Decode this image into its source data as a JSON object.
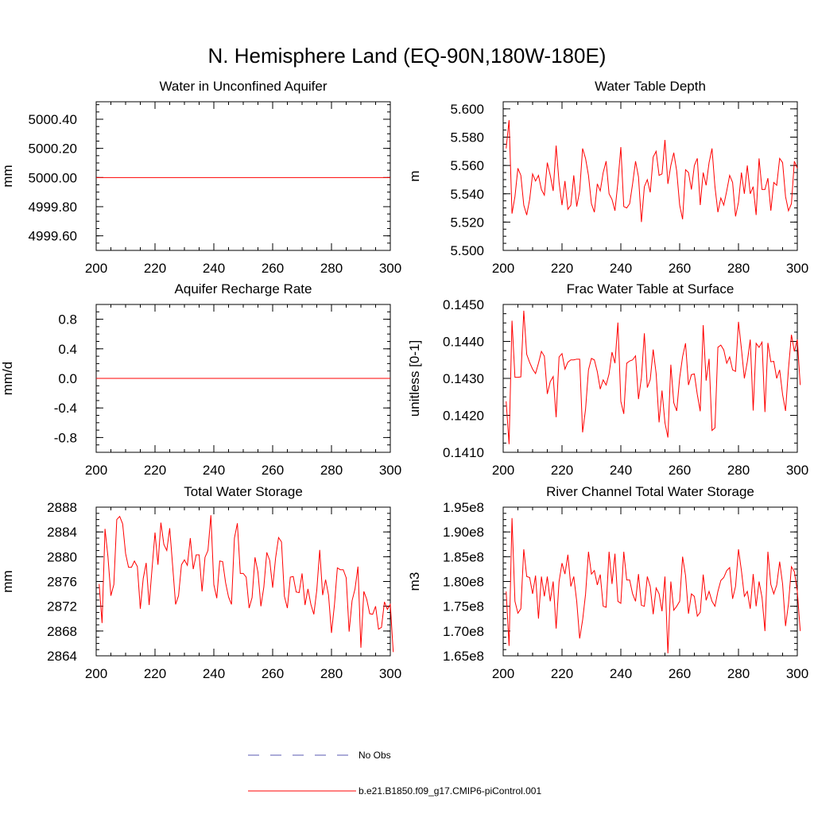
{
  "title": "N. Hemisphere Land (EQ-90N,180W-180E)",
  "colors": {
    "model": "#ff0000",
    "obs": "#5a5ab0",
    "axis": "#000000"
  },
  "legend": {
    "obs_label": "No Obs",
    "model_label": "b.e21.B1850.f09_g17.CMIP6-piControl.001"
  },
  "chart_data": [
    {
      "id": "aquifer-water",
      "type": "line",
      "title": "Water in Unconfined Aquifer",
      "xlabel": "",
      "ylabel": "mm",
      "xlim": [
        200,
        300
      ],
      "ylim": [
        4999.5,
        5000.52
      ],
      "xticks": [
        200,
        220,
        240,
        260,
        280,
        300
      ],
      "xtick_labels": [
        "200",
        "220",
        "240",
        "260",
        "280",
        "300"
      ],
      "yticks": [
        4999.6,
        4999.8,
        5000.0,
        5000.2,
        5000.4
      ],
      "ytick_labels": [
        "4999.60",
        "4999.80",
        "5000.00",
        "5000.20",
        "5000.40"
      ],
      "x_start": 201,
      "series": [
        {
          "name": "b.e21.B1850.f09_g17.CMIP6-piControl.001",
          "constant": 5000.0,
          "values": []
        }
      ]
    },
    {
      "id": "water-table-depth",
      "type": "line",
      "title": "Water Table Depth",
      "xlabel": "",
      "ylabel": "m",
      "xlim": [
        200,
        300
      ],
      "ylim": [
        5.5,
        5.605
      ],
      "xticks": [
        200,
        220,
        240,
        260,
        280,
        300
      ],
      "xtick_labels": [
        "200",
        "220",
        "240",
        "260",
        "280",
        "300"
      ],
      "yticks": [
        5.5,
        5.52,
        5.54,
        5.56,
        5.58,
        5.6
      ],
      "ytick_labels": [
        "5.500",
        "5.520",
        "5.540",
        "5.560",
        "5.580",
        "5.600"
      ],
      "x_start": 201,
      "series": [
        {
          "name": "b.e21.B1850.f09_g17.CMIP6-piControl.001",
          "values": [
            5.572,
            5.592,
            5.526,
            5.538,
            5.558,
            5.553,
            5.532,
            5.525,
            5.536,
            5.554,
            5.549,
            5.553,
            5.543,
            5.539,
            5.562,
            5.553,
            5.542,
            5.574,
            5.548,
            5.532,
            5.549,
            5.529,
            5.532,
            5.553,
            5.531,
            5.542,
            5.572,
            5.565,
            5.553,
            5.533,
            5.527,
            5.547,
            5.542,
            5.555,
            5.563,
            5.54,
            5.536,
            5.528,
            5.548,
            5.573,
            5.531,
            5.53,
            5.533,
            5.547,
            5.563,
            5.552,
            5.52,
            5.545,
            5.55,
            5.541,
            5.566,
            5.57,
            5.553,
            5.554,
            5.578,
            5.547,
            5.56,
            5.569,
            5.556,
            5.532,
            5.522,
            5.557,
            5.555,
            5.543,
            5.56,
            5.565,
            5.532,
            5.555,
            5.546,
            5.562,
            5.572,
            5.545,
            5.527,
            5.537,
            5.532,
            5.542,
            5.553,
            5.548,
            5.524,
            5.534,
            5.555,
            5.54,
            5.56,
            5.54,
            5.545,
            5.525,
            5.565,
            5.543,
            5.543,
            5.551,
            5.528,
            5.548,
            5.546,
            5.565,
            5.562,
            5.538,
            5.528,
            5.533,
            5.563,
            5.558
          ]
        }
      ]
    },
    {
      "id": "recharge-rate",
      "type": "line",
      "title": "Aquifer Recharge Rate",
      "xlabel": "",
      "ylabel": "mm/d",
      "xlim": [
        200,
        300
      ],
      "ylim": [
        -1.0,
        1.0
      ],
      "xticks": [
        200,
        220,
        240,
        260,
        280,
        300
      ],
      "xtick_labels": [
        "200",
        "220",
        "240",
        "260",
        "280",
        "300"
      ],
      "yticks": [
        -0.8,
        -0.4,
        0.0,
        0.4,
        0.8
      ],
      "ytick_labels": [
        "-0.8",
        "-0.4",
        "0.0",
        "0.4",
        "0.8"
      ],
      "x_start": 201,
      "series": [
        {
          "name": "b.e21.B1850.f09_g17.CMIP6-piControl.001",
          "constant": 0.0,
          "values": []
        }
      ]
    },
    {
      "id": "frac-water-table",
      "type": "line",
      "title": "Frac Water Table at Surface",
      "xlabel": "",
      "ylabel": "unitless [0-1]",
      "xlim": [
        200,
        300
      ],
      "ylim": [
        0.141,
        0.145
      ],
      "xticks": [
        200,
        220,
        240,
        260,
        280,
        300
      ],
      "xtick_labels": [
        "200",
        "220",
        "240",
        "260",
        "280",
        "300"
      ],
      "yticks": [
        0.141,
        0.142,
        0.143,
        0.144,
        0.145
      ],
      "ytick_labels": [
        "0.1410",
        "0.1420",
        "0.1430",
        "0.1440",
        "0.1450"
      ],
      "x_start": 201,
      "series": [
        {
          "name": "b.e21.B1850.f09_g17.CMIP6-piControl.001",
          "values": [
            0.14238,
            0.14122,
            0.14456,
            0.14303,
            0.14303,
            0.14304,
            0.14483,
            0.14365,
            0.14343,
            0.14325,
            0.14313,
            0.14341,
            0.14373,
            0.1436,
            0.14258,
            0.14291,
            0.14305,
            0.14195,
            0.14358,
            0.14367,
            0.14325,
            0.14344,
            0.1435,
            0.1435,
            0.14352,
            0.14352,
            0.14154,
            0.14216,
            0.14323,
            0.14354,
            0.1435,
            0.14318,
            0.14271,
            0.14296,
            0.14282,
            0.14312,
            0.14371,
            0.14341,
            0.14451,
            0.14238,
            0.14204,
            0.14341,
            0.14347,
            0.1435,
            0.14361,
            0.14244,
            0.14302,
            0.14422,
            0.14275,
            0.14297,
            0.14378,
            0.14313,
            0.14181,
            0.14267,
            0.1418,
            0.1414,
            0.14337,
            0.14234,
            0.14212,
            0.14301,
            0.14359,
            0.14395,
            0.14282,
            0.1431,
            0.14312,
            0.14256,
            0.14211,
            0.14444,
            0.14294,
            0.14353,
            0.14159,
            0.14166,
            0.14384,
            0.1439,
            0.14377,
            0.14341,
            0.14358,
            0.14323,
            0.14319,
            0.14453,
            0.1438,
            0.143,
            0.14345,
            0.14405,
            0.14213,
            0.14395,
            0.14384,
            0.14398,
            0.14209,
            0.14396,
            0.14345,
            0.14346,
            0.143,
            0.14323,
            0.14256,
            0.14212,
            0.14326,
            0.14418,
            0.14373,
            0.14405,
            0.14282
          ]
        }
      ]
    },
    {
      "id": "total-water-storage",
      "type": "line",
      "title": "Total Water Storage",
      "xlabel": "",
      "ylabel": "mm",
      "xlim": [
        200,
        300
      ],
      "ylim": [
        2864,
        2888
      ],
      "xticks": [
        200,
        220,
        240,
        260,
        280,
        300
      ],
      "xtick_labels": [
        "200",
        "220",
        "240",
        "260",
        "280",
        "300"
      ],
      "yticks": [
        2864,
        2868,
        2872,
        2876,
        2880,
        2884,
        2888
      ],
      "ytick_labels": [
        "2864",
        "2868",
        "2872",
        "2876",
        "2880",
        "2884",
        "2888"
      ],
      "x_start": 201,
      "series": [
        {
          "name": "b.e21.B1850.f09_g17.CMIP6-piControl.001",
          "values": [
            2875.6,
            2869.3,
            2884.5,
            2880.0,
            2873.7,
            2875.5,
            2886.0,
            2886.5,
            2885.3,
            2880.5,
            2878.3,
            2878.3,
            2879.3,
            2878.4,
            2871.6,
            2876.5,
            2879.0,
            2872.2,
            2878.1,
            2883.9,
            2878.7,
            2885.5,
            2882.0,
            2881.0,
            2884.6,
            2878.5,
            2872.3,
            2873.7,
            2878.7,
            2879.5,
            2878.6,
            2883.0,
            2878.0,
            2880.3,
            2880.3,
            2874.4,
            2879.9,
            2881.0,
            2886.7,
            2875.5,
            2873.3,
            2879.3,
            2879.2,
            2875.8,
            2873.5,
            2872.3,
            2883.0,
            2885.4,
            2877.3,
            2877.3,
            2876.7,
            2871.7,
            2873.4,
            2879.9,
            2877.5,
            2872.0,
            2875.1,
            2880.7,
            2879.4,
            2875.0,
            2879.8,
            2883.1,
            2882.4,
            2873.6,
            2871.7,
            2876.7,
            2876.8,
            2874.3,
            2874.2,
            2877.3,
            2872.2,
            2874.8,
            2872.3,
            2870.7,
            2874.6,
            2881.1,
            2873.8,
            2876.3,
            2873.8,
            2867.7,
            2872.2,
            2878.2,
            2877.9,
            2877.9,
            2876.6,
            2867.9,
            2872.9,
            2874.8,
            2878.4,
            2865.3,
            2874.4,
            2873.1,
            2870.8,
            2870.7,
            2872.0,
            2868.3,
            2868.6,
            2872.7,
            2871.5,
            2872.3,
            2864.6
          ]
        }
      ]
    },
    {
      "id": "river-channel-storage",
      "type": "line",
      "title": "River Channel Total Water Storage",
      "xlabel": "",
      "ylabel": "m3",
      "xlim": [
        200,
        300
      ],
      "ylim": [
        165000000.0,
        195000000.0
      ],
      "xticks": [
        200,
        220,
        240,
        260,
        280,
        300
      ],
      "xtick_labels": [
        "200",
        "220",
        "240",
        "260",
        "280",
        "300"
      ],
      "yticks": [
        165000000.0,
        170000000.0,
        175000000.0,
        180000000.0,
        185000000.0,
        190000000.0,
        195000000.0
      ],
      "ytick_labels": [
        "1.65e8",
        "1.70e8",
        "1.75e8",
        "1.80e8",
        "1.85e8",
        "1.90e8",
        "1.95e8"
      ],
      "x_start": 201,
      "series": [
        {
          "name": "b.e21.B1850.f09_g17.CMIP6-piControl.001",
          "values": [
            178000000.0,
            167000000.0,
            192800000.0,
            176000000.0,
            173600000.0,
            174500000.0,
            186500000.0,
            181000000.0,
            180800000.0,
            177500000.0,
            181200000.0,
            172500000.0,
            181000000.0,
            177000000.0,
            181000000.0,
            176000000.0,
            180000000.0,
            170500000.0,
            180000000.0,
            183700000.0,
            181500000.0,
            185400000.0,
            179000000.0,
            181000000.0,
            176000000.0,
            168500000.0,
            172200000.0,
            177400000.0,
            186000000.0,
            181500000.0,
            182200000.0,
            179300000.0,
            181400000.0,
            175000000.0,
            174800000.0,
            186000000.0,
            179500000.0,
            185600000.0,
            176000000.0,
            175600000.0,
            186000000.0,
            180300000.0,
            180300000.0,
            177500000.0,
            176000000.0,
            181500000.0,
            175200000.0,
            175000000.0,
            181000000.0,
            179000000.0,
            173400000.0,
            178700000.0,
            177500000.0,
            174000000.0,
            181000000.0,
            165500000.0,
            180000000.0,
            174200000.0,
            175000000.0,
            176000000.0,
            185000000.0,
            181200000.0,
            173500000.0,
            177500000.0,
            177000000.0,
            173000000.0,
            173800000.0,
            181400000.0,
            176200000.0,
            178000000.0,
            176000000.0,
            175000000.0,
            178000000.0,
            180200000.0,
            180800000.0,
            182200000.0,
            182800000.0,
            176500000.0,
            179000000.0,
            186500000.0,
            182200000.0,
            177000000.0,
            178000000.0,
            174500000.0,
            181500000.0,
            175000000.0,
            180000000.0,
            176800000.0,
            170000000.0,
            186000000.0,
            179400000.0,
            177500000.0,
            179300000.0,
            184000000.0,
            179500000.0,
            171000000.0,
            175500000.0,
            183000000.0,
            182000000.0,
            178000000.0,
            170000000.0
          ]
        }
      ]
    }
  ]
}
